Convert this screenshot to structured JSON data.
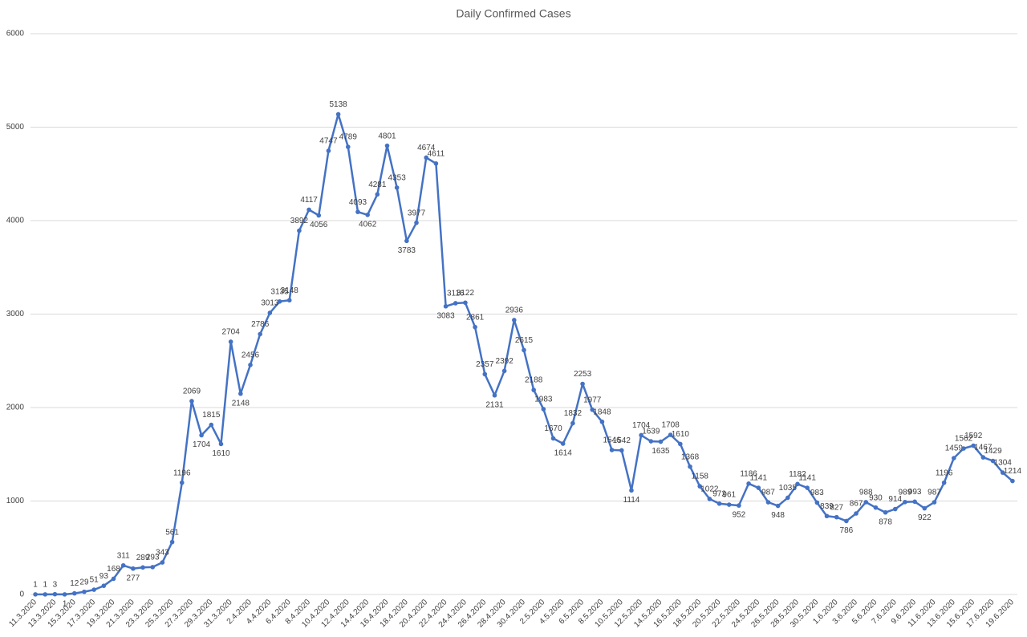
{
  "chart_data": {
    "type": "line",
    "title": "Daily Confirmed Cases",
    "categories": [
      "11.3.2020",
      null,
      "13.3.2020",
      null,
      "15.3.2020",
      null,
      "17.3.2020",
      null,
      "19.3.2020",
      null,
      "21.3.2020",
      null,
      "23.3.2020",
      null,
      "25.3.2020",
      null,
      "27.3.2020",
      null,
      "29.3.2020",
      null,
      "31.3.2020",
      null,
      "2.4.2020",
      null,
      "4.4.2020",
      null,
      "6.4.2020",
      null,
      "8.4.2020",
      null,
      "10.4.2020",
      null,
      "12.4.2020",
      null,
      "14.4.2020",
      null,
      "16.4.2020",
      null,
      "18.4.2020",
      null,
      "20.4.2020",
      null,
      "22.4.2020",
      null,
      "24.4.2020",
      null,
      "26.4.2020",
      null,
      "28.4.2020",
      null,
      "30.4.2020",
      null,
      "2.5.2020",
      null,
      "4.5.2020",
      null,
      "6.5.2020",
      null,
      "8.5.2020",
      null,
      "10.5.2020",
      null,
      "12.5.2020",
      null,
      "14.5.2020",
      null,
      "16.5.2020",
      null,
      "18.5.2020",
      null,
      "20.5.2020",
      null,
      "22.5.2020",
      null,
      "24.5.2020",
      null,
      "26.5.2020",
      null,
      "28.5.2020",
      null,
      "30.5.2020",
      null,
      "1.6.2020",
      null,
      "3.6.2020",
      null,
      "5.6.2020",
      null,
      "7.6.2020",
      null,
      "9.6.2020",
      null,
      "11.6.2020",
      null,
      "13.6.2020",
      null,
      "15.6.2020",
      null,
      "17.6.2020",
      null,
      "19.6.2020"
    ],
    "values": [
      1,
      1,
      3,
      1,
      12,
      29,
      51,
      93,
      168,
      311,
      277,
      289,
      293,
      343,
      561,
      1196,
      2069,
      1704,
      1815,
      1610,
      2704,
      2148,
      2456,
      2786,
      3013,
      3135,
      3148,
      3892,
      4117,
      4056,
      4747,
      5138,
      4789,
      4093,
      4062,
      4281,
      4801,
      4353,
      3783,
      3977,
      4674,
      4611,
      3083,
      3116,
      3122,
      2861,
      2357,
      2131,
      2392,
      2936,
      2615,
      2188,
      1983,
      1670,
      1614,
      1832,
      2253,
      1977,
      1848,
      1546,
      1542,
      1114,
      1704,
      1639,
      1635,
      1708,
      1610,
      1368,
      1158,
      1022,
      972,
      961,
      952,
      1186,
      1141,
      987,
      948,
      1035,
      1182,
      1141,
      983,
      839,
      827,
      786,
      867,
      988,
      930,
      878,
      914,
      989,
      993,
      922,
      987,
      1196,
      1459,
      1562,
      1592,
      1467,
      1429,
      1304,
      1214
    ],
    "color": "#4472c4",
    "ylim": [
      0,
      6000
    ],
    "yticks": [
      0,
      1000,
      2000,
      3000,
      4000,
      5000,
      6000
    ],
    "grid": true
  }
}
